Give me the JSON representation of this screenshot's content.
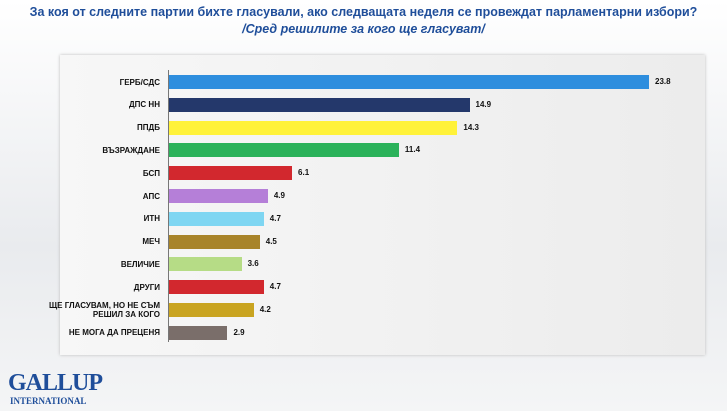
{
  "chart_data": {
    "type": "bar",
    "title": "За коя от следните партии бихте  гласували,  ако следващата неделя се провеждат парламентарни избори?",
    "subtitle": "/Сред решилите за кого ще гласуват/",
    "categories": [
      "ГЕРБ/СДС",
      "ДПС НН",
      "ППДБ",
      "ВЪЗРАЖДАНЕ",
      "БСП",
      "АПС",
      "ИТН",
      "МЕЧ",
      "ВЕЛИЧИЕ",
      "ДРУГИ",
      "ЩЕ ГЛАСУВАМ, НО НЕ СЪМ РЕШИЛ ЗА КОГО",
      "НЕ МОГА ДА ПРЕЦЕНЯ"
    ],
    "values": [
      23.8,
      14.9,
      14.3,
      11.4,
      6.1,
      4.9,
      4.7,
      4.5,
      3.6,
      4.7,
      4.2,
      2.9
    ],
    "colors": [
      "#2e8ede",
      "#24386b",
      "#fff23a",
      "#2bb25a",
      "#d2282e",
      "#b57fd8",
      "#7fd6f2",
      "#a8842a",
      "#b6dc86",
      "#d2282e",
      "#c9a421",
      "#7a6e6a"
    ]
  },
  "logo": {
    "name": "GALLUP",
    "sub": "INTERNATIONAL"
  }
}
